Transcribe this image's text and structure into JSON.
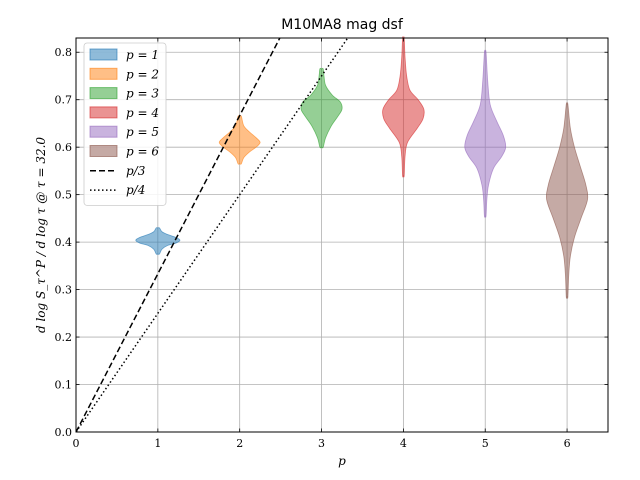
{
  "chart_data": {
    "type": "violin",
    "title": "M10MA8 mag dsf",
    "xlabel": "p",
    "ylabel": "d log S_τ^P / d log τ @ τ = 32.0",
    "xlim": [
      0,
      6.5
    ],
    "ylim": [
      0,
      0.83
    ],
    "xticks": [
      "0",
      "1",
      "2",
      "3",
      "4",
      "5",
      "6"
    ],
    "yticks": [
      "0.0",
      "0.1",
      "0.2",
      "0.3",
      "0.4",
      "0.5",
      "0.6",
      "0.7",
      "0.8"
    ],
    "grid": true,
    "legend_position": "top-left",
    "series": [
      {
        "name": "p = 1",
        "x": 1,
        "color": "#1f77b4",
        "median": 0.404,
        "min": 0.375,
        "max": 0.43,
        "profile": [
          [
            0.375,
            0.02
          ],
          [
            0.385,
            0.05
          ],
          [
            0.393,
            0.12
          ],
          [
            0.398,
            0.22
          ],
          [
            0.404,
            0.27
          ],
          [
            0.41,
            0.22
          ],
          [
            0.416,
            0.12
          ],
          [
            0.422,
            0.05
          ],
          [
            0.43,
            0.02
          ]
        ]
      },
      {
        "name": "p = 2",
        "x": 2,
        "color": "#ff7f0e",
        "median": 0.61,
        "min": 0.565,
        "max": 0.665,
        "profile": [
          [
            0.565,
            0.02
          ],
          [
            0.578,
            0.05
          ],
          [
            0.59,
            0.12
          ],
          [
            0.6,
            0.2
          ],
          [
            0.61,
            0.25
          ],
          [
            0.62,
            0.2
          ],
          [
            0.632,
            0.12
          ],
          [
            0.645,
            0.05
          ],
          [
            0.665,
            0.02
          ]
        ]
      },
      {
        "name": "p = 3",
        "x": 3,
        "color": "#2ca02c",
        "median": 0.685,
        "min": 0.6,
        "max": 0.765,
        "profile": [
          [
            0.6,
            0.02
          ],
          [
            0.62,
            0.05
          ],
          [
            0.645,
            0.12
          ],
          [
            0.665,
            0.2
          ],
          [
            0.68,
            0.25
          ],
          [
            0.695,
            0.23
          ],
          [
            0.71,
            0.13
          ],
          [
            0.73,
            0.05
          ],
          [
            0.75,
            0.03
          ],
          [
            0.765,
            0.02
          ]
        ]
      },
      {
        "name": "p = 4",
        "x": 4,
        "color": "#d62728",
        "median": 0.675,
        "min": 0.54,
        "max": 0.83,
        "profile": [
          [
            0.54,
            0.01
          ],
          [
            0.58,
            0.02
          ],
          [
            0.61,
            0.05
          ],
          [
            0.64,
            0.17
          ],
          [
            0.66,
            0.24
          ],
          [
            0.68,
            0.25
          ],
          [
            0.7,
            0.18
          ],
          [
            0.72,
            0.08
          ],
          [
            0.75,
            0.04
          ],
          [
            0.79,
            0.02
          ],
          [
            0.83,
            0.01
          ]
        ]
      },
      {
        "name": "p = 5",
        "x": 5,
        "color": "#9467bd",
        "median": 0.6,
        "min": 0.455,
        "max": 0.8,
        "profile": [
          [
            0.455,
            0.01
          ],
          [
            0.49,
            0.02
          ],
          [
            0.52,
            0.04
          ],
          [
            0.555,
            0.1
          ],
          [
            0.58,
            0.2
          ],
          [
            0.6,
            0.25
          ],
          [
            0.625,
            0.22
          ],
          [
            0.655,
            0.14
          ],
          [
            0.69,
            0.06
          ],
          [
            0.74,
            0.03
          ],
          [
            0.8,
            0.01
          ]
        ]
      },
      {
        "name": "p = 6",
        "x": 6,
        "color": "#8c564b",
        "median": 0.49,
        "min": 0.285,
        "max": 0.69,
        "profile": [
          [
            0.285,
            0.01
          ],
          [
            0.33,
            0.02
          ],
          [
            0.37,
            0.04
          ],
          [
            0.41,
            0.09
          ],
          [
            0.45,
            0.17
          ],
          [
            0.49,
            0.25
          ],
          [
            0.52,
            0.23
          ],
          [
            0.56,
            0.16
          ],
          [
            0.6,
            0.09
          ],
          [
            0.64,
            0.04
          ],
          [
            0.69,
            0.01
          ]
        ]
      }
    ],
    "lines": [
      {
        "name": "p/3",
        "style": "dashed",
        "slope": 0.3333
      },
      {
        "name": "p/4",
        "style": "dotted",
        "slope": 0.25
      }
    ]
  }
}
